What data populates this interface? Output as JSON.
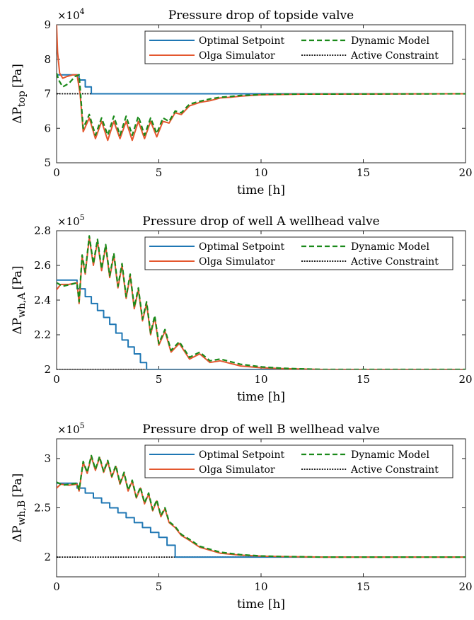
{
  "legend_labels": [
    "Optimal Setpoint",
    "Olga Simulator",
    "Dynamic Model",
    "Active Constraint"
  ],
  "colors": {
    "setpoint": "#1f77b4",
    "olga": "#e4572e",
    "model": "#1a8a1a",
    "constraint": "#000000"
  },
  "chart_data": [
    {
      "type": "line",
      "title": "Pressure drop of topside valve",
      "xlabel": "time [h]",
      "ylabel_main": "ΔP",
      "ylabel_sub": "top",
      "ylabel_unit": "[Pa]",
      "exponent": "×10",
      "exponent_power": "4",
      "xlim": [
        0,
        20
      ],
      "ylim": [
        5,
        9
      ],
      "xticks": [
        "0",
        "5",
        "10",
        "15",
        "20"
      ],
      "yticks": [
        "5",
        "6",
        "7",
        "8",
        "9"
      ],
      "grid": false,
      "legend_position": "top-right",
      "series": [
        {
          "name": "Optimal Setpoint",
          "x": [
            0,
            1.1,
            1.1,
            1.4,
            1.4,
            1.7,
            1.7,
            20
          ],
          "y": [
            7.55,
            7.55,
            7.4,
            7.4,
            7.2,
            7.2,
            7.0,
            7.0
          ]
        },
        {
          "name": "Olga Simulator",
          "x": [
            0,
            0.05,
            0.15,
            0.3,
            0.5,
            0.8,
            1.0,
            1.15,
            1.3,
            1.6,
            1.9,
            2.2,
            2.5,
            2.8,
            3.1,
            3.4,
            3.7,
            4.0,
            4.3,
            4.6,
            4.9,
            5.2,
            5.5,
            5.8,
            6.1,
            6.5,
            7.0,
            7.5,
            8.0,
            8.5,
            9.0,
            9.5,
            10.0,
            11.0,
            12.0,
            20
          ],
          "y": [
            9.0,
            8.2,
            7.6,
            7.45,
            7.5,
            7.55,
            7.55,
            7.0,
            5.9,
            6.3,
            5.7,
            6.2,
            5.65,
            6.2,
            5.7,
            6.2,
            5.65,
            6.2,
            5.7,
            6.2,
            5.75,
            6.2,
            6.15,
            6.45,
            6.4,
            6.65,
            6.75,
            6.8,
            6.88,
            6.9,
            6.93,
            6.95,
            6.97,
            6.98,
            6.99,
            7.0
          ]
        },
        {
          "name": "Dynamic Model",
          "x": [
            0,
            0.1,
            0.3,
            0.6,
            0.9,
            1.1,
            1.3,
            1.6,
            1.9,
            2.2,
            2.5,
            2.8,
            3.1,
            3.4,
            3.7,
            4.0,
            4.3,
            4.6,
            4.9,
            5.2,
            5.5,
            5.8,
            6.1,
            6.5,
            7.0,
            7.5,
            8.0,
            8.5,
            9.0,
            9.5,
            10.0,
            11.0,
            20
          ],
          "y": [
            7.6,
            7.4,
            7.2,
            7.3,
            7.5,
            7.55,
            6.0,
            6.4,
            5.8,
            6.3,
            5.8,
            6.35,
            5.8,
            6.35,
            5.8,
            6.35,
            5.8,
            6.3,
            5.85,
            6.3,
            6.2,
            6.5,
            6.45,
            6.7,
            6.78,
            6.85,
            6.9,
            6.92,
            6.95,
            6.96,
            6.98,
            6.99,
            7.0
          ]
        },
        {
          "name": "Active Constraint",
          "x": [
            0,
            20
          ],
          "y": [
            7.0,
            7.0
          ]
        }
      ]
    },
    {
      "type": "line",
      "title": "Pressure drop of well A wellhead valve",
      "xlabel": "time [h]",
      "ylabel_main": "ΔP",
      "ylabel_sub": "wh,A",
      "ylabel_unit": "[Pa]",
      "exponent": "×10",
      "exponent_power": "5",
      "xlim": [
        0,
        20
      ],
      "ylim": [
        2.0,
        2.8
      ],
      "xticks": [
        "0",
        "5",
        "10",
        "15",
        "20"
      ],
      "yticks": [
        "2",
        "2.2",
        "2.4",
        "2.6",
        "2.8"
      ],
      "grid": false,
      "legend_position": "top-right",
      "series": [
        {
          "name": "Optimal Setpoint",
          "x": [
            0,
            1.0,
            1.0,
            1.4,
            1.4,
            1.7,
            1.7,
            2.0,
            2.0,
            2.3,
            2.3,
            2.6,
            2.6,
            2.9,
            2.9,
            3.2,
            3.2,
            3.5,
            3.5,
            3.8,
            3.8,
            4.1,
            4.1,
            4.4,
            4.4,
            20
          ],
          "y": [
            2.515,
            2.515,
            2.465,
            2.465,
            2.42,
            2.42,
            2.38,
            2.38,
            2.34,
            2.34,
            2.3,
            2.3,
            2.26,
            2.26,
            2.21,
            2.21,
            2.17,
            2.17,
            2.13,
            2.13,
            2.09,
            2.09,
            2.04,
            2.04,
            2.0,
            2.0
          ]
        },
        {
          "name": "Olga Simulator",
          "x": [
            0,
            0.2,
            0.6,
            1.0,
            1.1,
            1.25,
            1.4,
            1.6,
            1.8,
            2.0,
            2.2,
            2.4,
            2.6,
            2.8,
            3.0,
            3.2,
            3.4,
            3.6,
            3.8,
            4.0,
            4.2,
            4.4,
            4.6,
            4.8,
            5.0,
            5.3,
            5.6,
            6.0,
            6.5,
            7.0,
            7.5,
            8.0,
            9.0,
            10.0,
            11.0,
            13.0,
            20
          ],
          "y": [
            2.46,
            2.49,
            2.49,
            2.5,
            2.38,
            2.65,
            2.55,
            2.76,
            2.6,
            2.74,
            2.57,
            2.71,
            2.53,
            2.66,
            2.47,
            2.6,
            2.41,
            2.54,
            2.35,
            2.46,
            2.28,
            2.38,
            2.2,
            2.3,
            2.14,
            2.22,
            2.1,
            2.15,
            2.06,
            2.09,
            2.04,
            2.05,
            2.02,
            2.01,
            2.005,
            2.0,
            2.0
          ]
        },
        {
          "name": "Dynamic Model",
          "x": [
            0,
            0.3,
            0.7,
            1.0,
            1.1,
            1.25,
            1.4,
            1.6,
            1.8,
            2.0,
            2.2,
            2.4,
            2.6,
            2.8,
            3.0,
            3.2,
            3.4,
            3.6,
            3.8,
            4.0,
            4.2,
            4.4,
            4.6,
            4.8,
            5.0,
            5.3,
            5.6,
            6.0,
            6.5,
            7.0,
            7.5,
            8.0,
            9.0,
            10.0,
            11.0,
            13.0,
            20
          ],
          "y": [
            2.5,
            2.48,
            2.49,
            2.5,
            2.39,
            2.66,
            2.56,
            2.77,
            2.61,
            2.75,
            2.58,
            2.72,
            2.54,
            2.67,
            2.48,
            2.61,
            2.42,
            2.55,
            2.36,
            2.47,
            2.29,
            2.39,
            2.21,
            2.31,
            2.15,
            2.23,
            2.11,
            2.16,
            2.07,
            2.1,
            2.05,
            2.06,
            2.03,
            2.015,
            2.007,
            2.0,
            2.0
          ]
        },
        {
          "name": "Active Constraint",
          "x": [
            0,
            20
          ],
          "y": [
            2.0,
            2.0
          ]
        }
      ]
    },
    {
      "type": "line",
      "title": "Pressure drop of well B wellhead valve",
      "xlabel": "time [h]",
      "ylabel_main": "ΔP",
      "ylabel_sub": "wh,B",
      "ylabel_unit": "[Pa]",
      "exponent": "×10",
      "exponent_power": "5",
      "xlim": [
        0,
        20
      ],
      "ylim": [
        1.8,
        3.2
      ],
      "xticks": [
        "0",
        "5",
        "10",
        "15",
        "20"
      ],
      "yticks": [
        "2",
        "2.5",
        "3"
      ],
      "grid": false,
      "legend_position": "top-right",
      "series": [
        {
          "name": "Optimal Setpoint",
          "x": [
            0,
            1.0,
            1.0,
            1.4,
            1.4,
            1.8,
            1.8,
            2.2,
            2.2,
            2.6,
            2.6,
            3.0,
            3.0,
            3.4,
            3.4,
            3.8,
            3.8,
            4.2,
            4.2,
            4.6,
            4.6,
            5.0,
            5.0,
            5.4,
            5.4,
            5.8,
            5.8,
            20
          ],
          "y": [
            2.75,
            2.75,
            2.7,
            2.7,
            2.65,
            2.65,
            2.6,
            2.6,
            2.55,
            2.55,
            2.5,
            2.5,
            2.45,
            2.45,
            2.4,
            2.4,
            2.35,
            2.35,
            2.3,
            2.3,
            2.25,
            2.25,
            2.2,
            2.2,
            2.12,
            2.12,
            2.0,
            2.0
          ]
        },
        {
          "name": "Olga Simulator",
          "x": [
            0,
            0.2,
            0.6,
            1.0,
            1.1,
            1.3,
            1.5,
            1.7,
            1.9,
            2.1,
            2.3,
            2.5,
            2.7,
            2.9,
            3.1,
            3.3,
            3.5,
            3.7,
            3.9,
            4.1,
            4.3,
            4.5,
            4.7,
            4.9,
            5.1,
            5.3,
            5.5,
            5.8,
            6.1,
            6.5,
            7.0,
            7.5,
            8.0,
            9.0,
            10.0,
            11.0,
            13.0,
            20
          ],
          "y": [
            2.7,
            2.74,
            2.73,
            2.74,
            2.67,
            2.96,
            2.85,
            3.02,
            2.88,
            3.01,
            2.86,
            2.97,
            2.81,
            2.92,
            2.74,
            2.85,
            2.67,
            2.77,
            2.6,
            2.7,
            2.54,
            2.64,
            2.47,
            2.57,
            2.41,
            2.49,
            2.35,
            2.3,
            2.22,
            2.17,
            2.1,
            2.07,
            2.04,
            2.02,
            2.01,
            2.005,
            2.0,
            2.0
          ]
        },
        {
          "name": "Dynamic Model",
          "x": [
            0,
            0.3,
            0.7,
            1.0,
            1.1,
            1.3,
            1.5,
            1.7,
            1.9,
            2.1,
            2.3,
            2.5,
            2.7,
            2.9,
            3.1,
            3.3,
            3.5,
            3.7,
            3.9,
            4.1,
            4.3,
            4.5,
            4.7,
            4.9,
            5.1,
            5.3,
            5.5,
            5.8,
            6.1,
            6.5,
            7.0,
            7.5,
            8.0,
            9.0,
            10.0,
            11.0,
            13.0,
            20
          ],
          "y": [
            2.76,
            2.73,
            2.74,
            2.75,
            2.68,
            2.97,
            2.86,
            3.03,
            2.89,
            3.02,
            2.87,
            2.98,
            2.82,
            2.93,
            2.75,
            2.86,
            2.68,
            2.78,
            2.61,
            2.71,
            2.55,
            2.65,
            2.48,
            2.58,
            2.42,
            2.5,
            2.36,
            2.31,
            2.23,
            2.18,
            2.11,
            2.08,
            2.05,
            2.025,
            2.012,
            2.006,
            2.0,
            2.0
          ]
        },
        {
          "name": "Active Constraint",
          "x": [
            0,
            20
          ],
          "y": [
            2.0,
            2.0
          ]
        }
      ]
    }
  ]
}
